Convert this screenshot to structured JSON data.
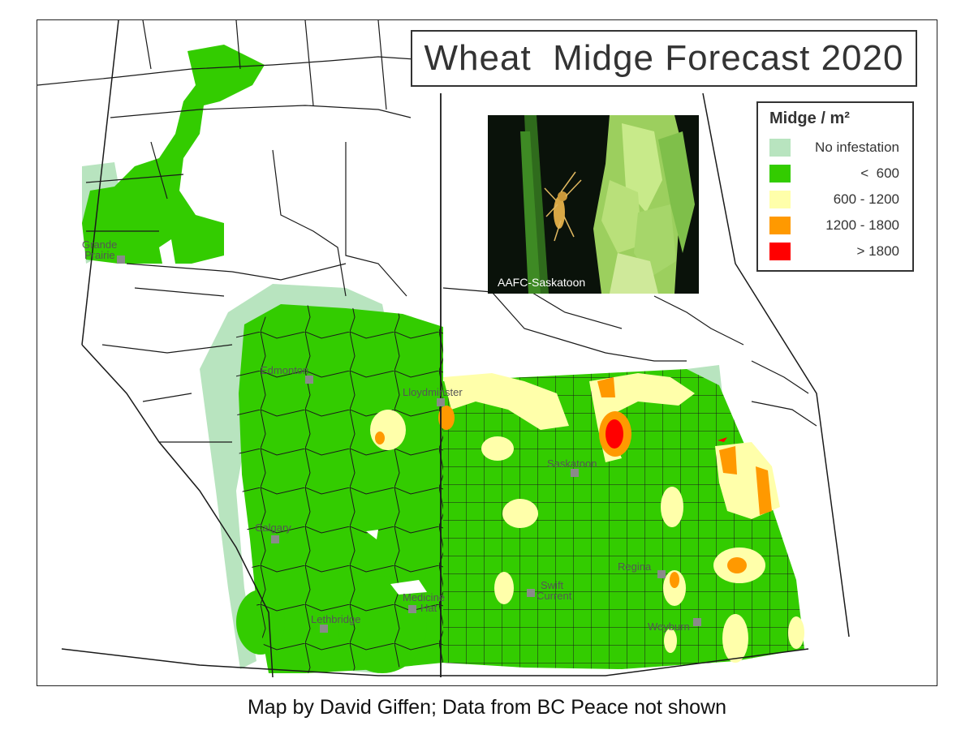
{
  "map": {
    "title": "Wheat  Midge Forecast 2020",
    "legend": {
      "title": "Midge / m²",
      "items": [
        {
          "label": "No infestation",
          "color": "#b8e4bf"
        },
        {
          "label": "<  600",
          "color": "#33cc00"
        },
        {
          "label": "600 - 1200",
          "color": "#ffffaa"
        },
        {
          "label": "1200 - 1800",
          "color": "#ff9900"
        },
        {
          "label": "> 1800",
          "color": "#ff0000"
        }
      ]
    },
    "photo": {
      "credit": "AAFC-Saskatoon",
      "icon": "midge-on-wheat-photo"
    },
    "cities": [
      {
        "lines": [
          "Grande",
          "Prairie"
        ]
      },
      {
        "lines": [
          "Edmonton"
        ]
      },
      {
        "lines": [
          "Lloydminster"
        ]
      },
      {
        "lines": [
          "Saskatoon"
        ]
      },
      {
        "lines": [
          "Calgary"
        ]
      },
      {
        "lines": [
          "Medicine",
          "Hat"
        ]
      },
      {
        "lines": [
          "Swift",
          "Current"
        ]
      },
      {
        "lines": [
          "Regina"
        ]
      },
      {
        "lines": [
          "Lethbridge"
        ]
      },
      {
        "lines": [
          "Weyburn"
        ]
      }
    ]
  },
  "caption": "Map by David Giffen; Data from BC Peace not shown"
}
